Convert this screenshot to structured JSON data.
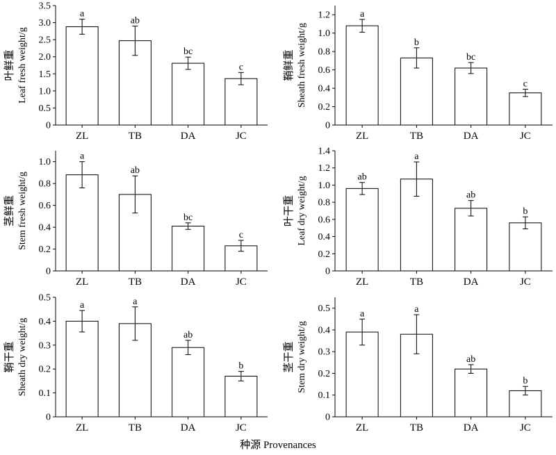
{
  "figure": {
    "xlabel": "种源 Provenances"
  },
  "chart_data": [
    {
      "type": "bar",
      "ylabel_cn": "叶鲜重",
      "ylabel_en": "Leaf fresh weight/g",
      "categories": [
        "ZL",
        "TB",
        "DA",
        "JC"
      ],
      "values": [
        2.88,
        2.47,
        1.81,
        1.36
      ],
      "errors": [
        0.22,
        0.43,
        0.18,
        0.18
      ],
      "letters": [
        "a",
        "ab",
        "bc",
        "c"
      ],
      "ylim": [
        0,
        3.5
      ],
      "yticks": [
        "0",
        "0.5",
        "1.0",
        "1.5",
        "2.0",
        "2.5",
        "3.0",
        "3.5"
      ]
    },
    {
      "type": "bar",
      "ylabel_cn": "鞘鲜重",
      "ylabel_en": "Sheath fresh weight/g",
      "categories": [
        "ZL",
        "TB",
        "DA",
        "JC"
      ],
      "values": [
        1.08,
        0.73,
        0.62,
        0.35
      ],
      "errors": [
        0.07,
        0.11,
        0.06,
        0.04
      ],
      "letters": [
        "a",
        "b",
        "bc",
        "c"
      ],
      "ylim": [
        0,
        1.3
      ],
      "yticks": [
        "0",
        "0.2",
        "0.4",
        "0.6",
        "0.8",
        "1.0",
        "1.2"
      ]
    },
    {
      "type": "bar",
      "ylabel_cn": "茎鲜重",
      "ylabel_en": "Stem fresh weight/g",
      "categories": [
        "ZL",
        "TB",
        "DA",
        "JC"
      ],
      "values": [
        0.88,
        0.7,
        0.41,
        0.23
      ],
      "errors": [
        0.12,
        0.17,
        0.03,
        0.05
      ],
      "letters": [
        "a",
        "ab",
        "bc",
        "c"
      ],
      "ylim": [
        0,
        1.1
      ],
      "yticks": [
        "0",
        "0.2",
        "0.4",
        "0.6",
        "0.8",
        "1.0"
      ]
    },
    {
      "type": "bar",
      "ylabel_cn": "叶干重",
      "ylabel_en": "Leaf dry weight/g",
      "categories": [
        "ZL",
        "TB",
        "DA",
        "JC"
      ],
      "values": [
        0.96,
        1.07,
        0.73,
        0.56
      ],
      "errors": [
        0.07,
        0.2,
        0.09,
        0.07
      ],
      "letters": [
        "ab",
        "a",
        "ab",
        "b"
      ],
      "ylim": [
        0,
        1.4
      ],
      "yticks": [
        "0",
        "0.2",
        "0.4",
        "0.6",
        "0.8",
        "1.0",
        "1.2",
        "1.4"
      ]
    },
    {
      "type": "bar",
      "ylabel_cn": "鞘干重",
      "ylabel_en": "Sheath dry weight/g",
      "categories": [
        "ZL",
        "TB",
        "DA",
        "JC"
      ],
      "values": [
        0.4,
        0.39,
        0.29,
        0.17
      ],
      "errors": [
        0.045,
        0.07,
        0.03,
        0.02
      ],
      "letters": [
        "a",
        "a",
        "ab",
        "b"
      ],
      "ylim": [
        0,
        0.5
      ],
      "yticks": [
        "0",
        "0.1",
        "0.2",
        "0.3",
        "0.4",
        "0.5"
      ]
    },
    {
      "type": "bar",
      "ylabel_cn": "茎干重",
      "ylabel_en": "Stem dry weight/g",
      "categories": [
        "ZL",
        "TB",
        "DA",
        "JC"
      ],
      "values": [
        0.39,
        0.38,
        0.22,
        0.12
      ],
      "errors": [
        0.06,
        0.09,
        0.02,
        0.02
      ],
      "letters": [
        "a",
        "a",
        "ab",
        "b"
      ],
      "ylim": [
        0,
        0.55
      ],
      "yticks": [
        "0",
        "0.1",
        "0.2",
        "0.3",
        "0.4",
        "0.5"
      ]
    }
  ]
}
